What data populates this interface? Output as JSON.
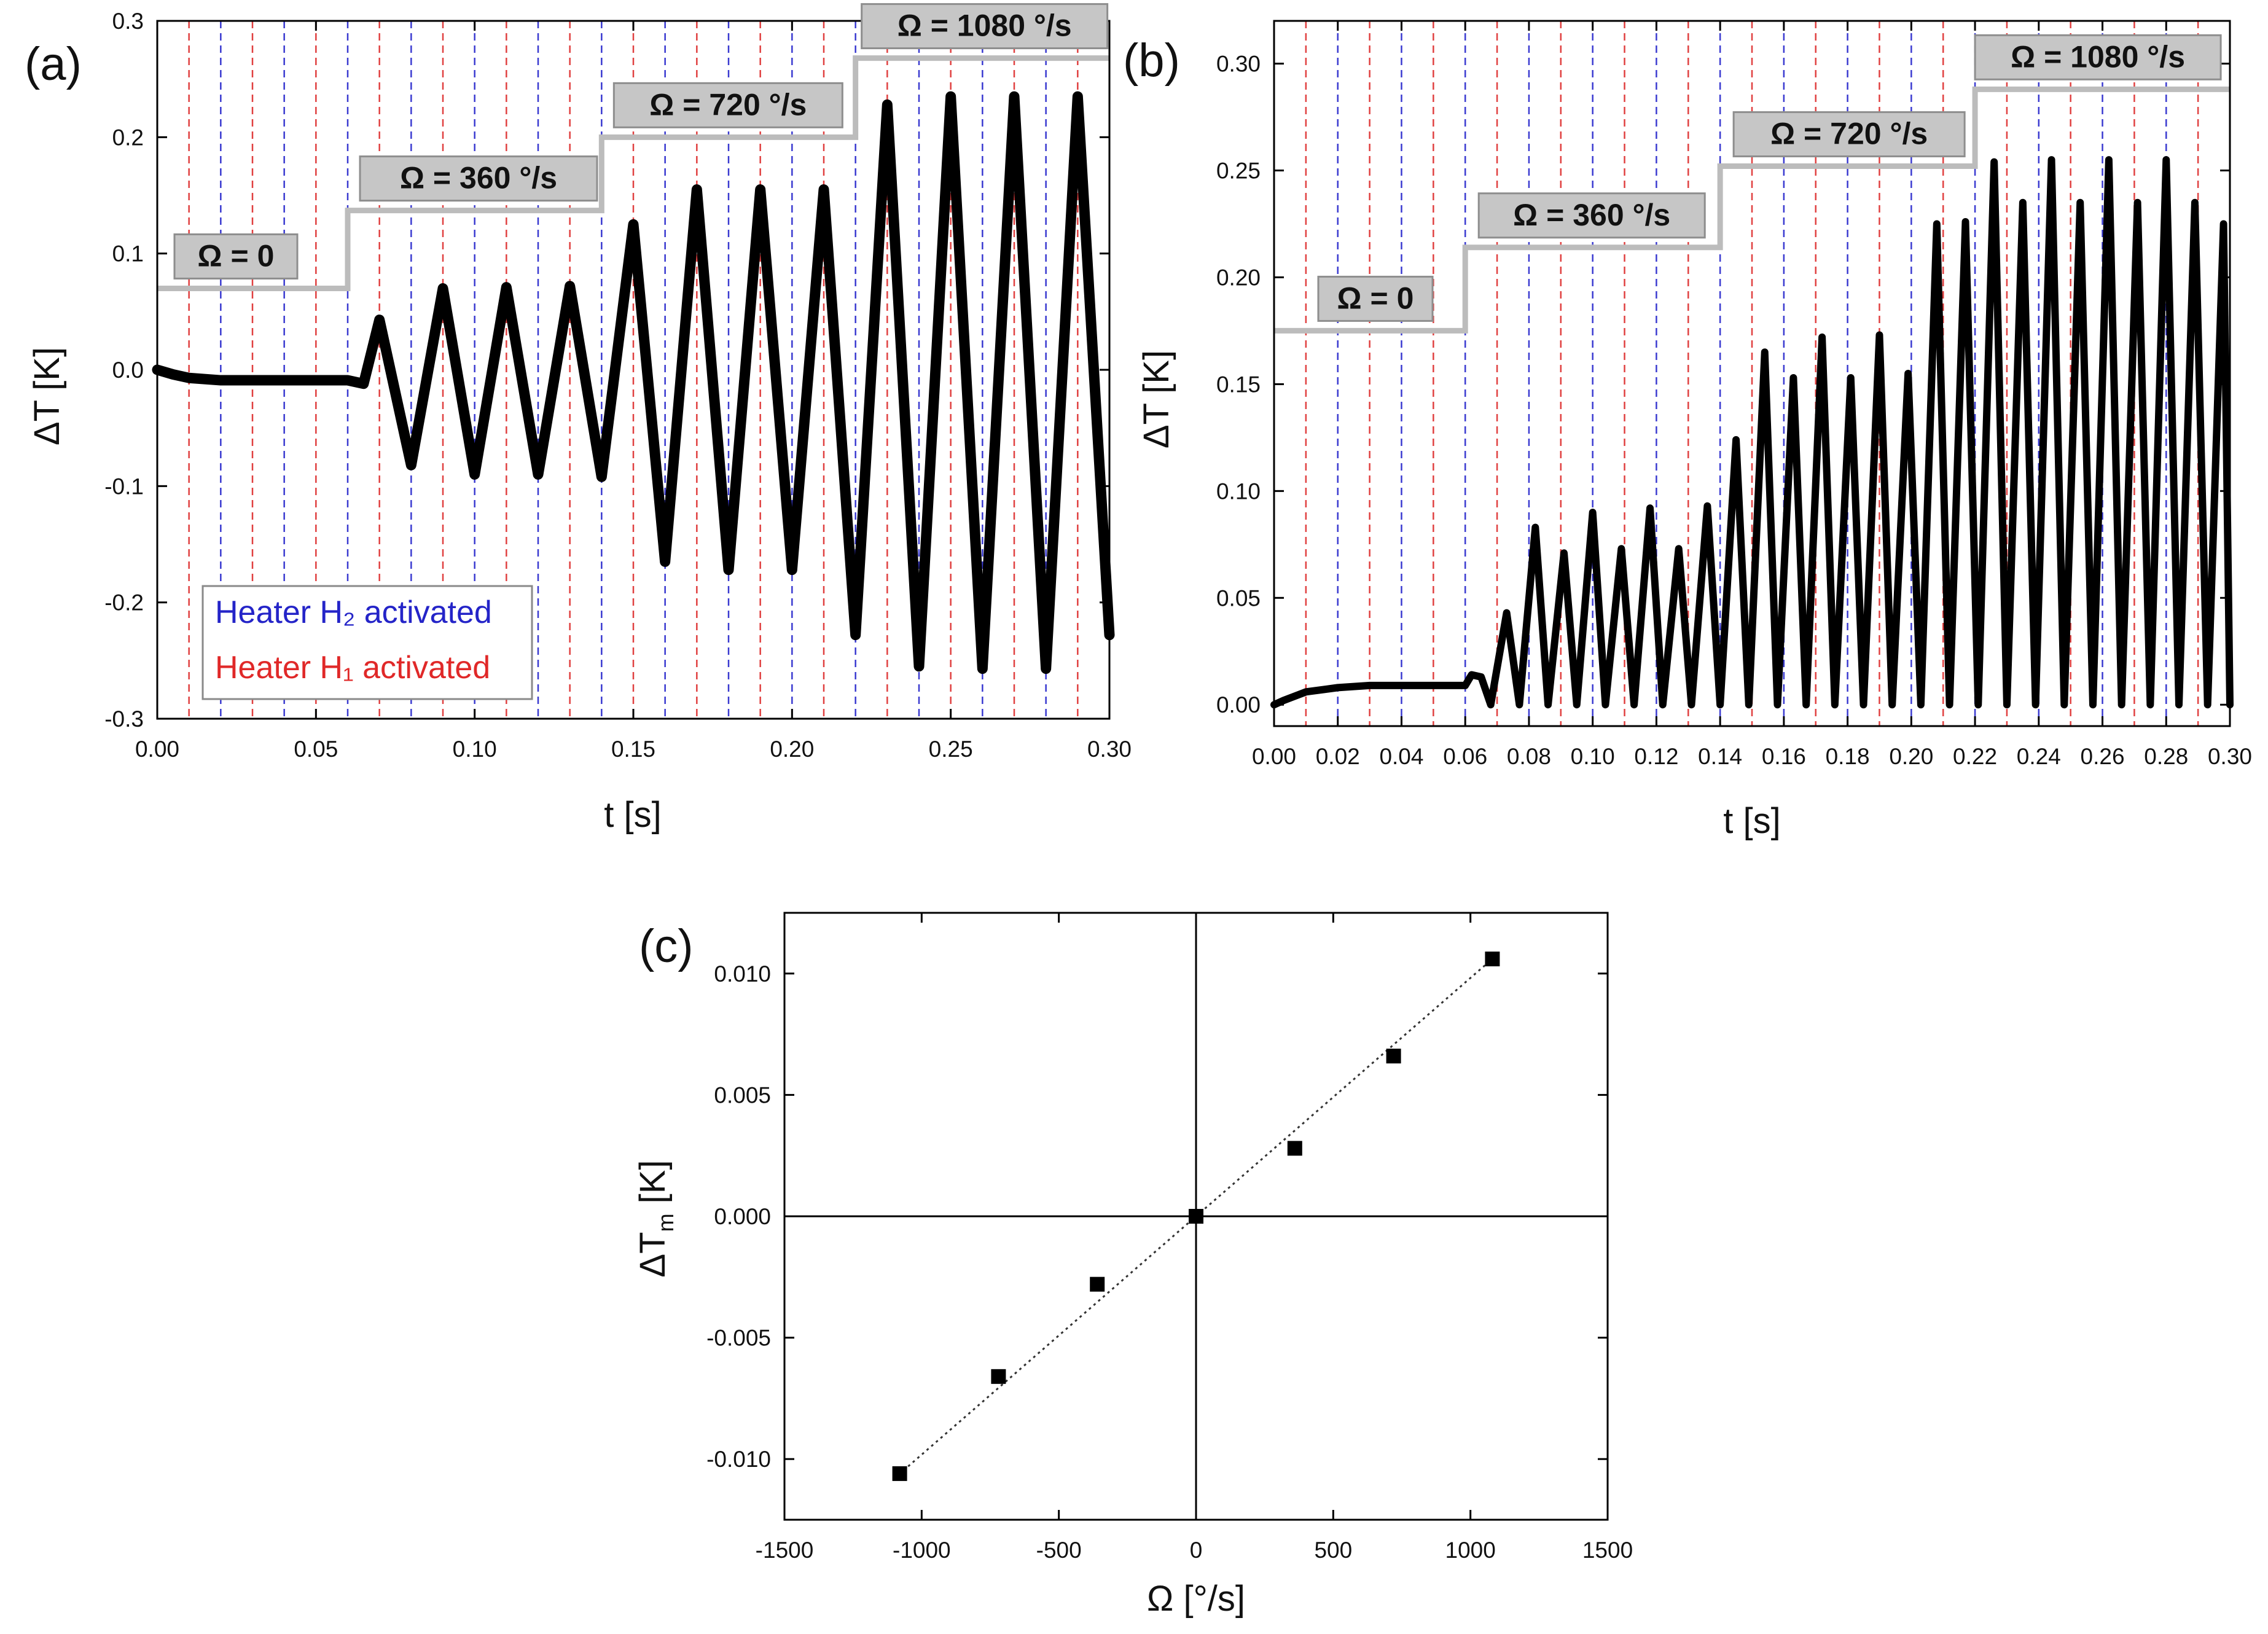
{
  "chart_data": [
    {
      "panel": "(a)",
      "type": "line",
      "xlabel": "t [s]",
      "ylabel": "ΔT [K]",
      "xlim": [
        0,
        0.3
      ],
      "ylim": [
        -0.3,
        0.3
      ],
      "xticks": [
        "0.00",
        "0.05",
        "0.10",
        "0.15",
        "0.20",
        "0.25",
        "0.30"
      ],
      "yticks": [
        "-0.3",
        "-0.2",
        "-0.1",
        "0.0",
        "0.1",
        "0.2",
        "0.3"
      ],
      "omega_boxes": [
        "Ω = 0",
        "Ω = 360 °/s",
        "Ω = 720 °/s",
        "Ω = 1080 °/s"
      ],
      "omega_phases": [
        {
          "t_start": 0.0,
          "t_end": 0.06,
          "step_level": 0.07
        },
        {
          "t_start": 0.06,
          "t_end": 0.14,
          "step_level": 0.137
        },
        {
          "t_start": 0.14,
          "t_end": 0.22,
          "step_level": 0.2
        },
        {
          "t_start": 0.22,
          "t_end": 0.3,
          "step_level": 0.268
        }
      ],
      "legend": {
        "h2": "Heater H₂ activated",
        "h1": "Heater H₁ activated",
        "h2_color": "#2424c8",
        "h1_color": "#e02828"
      },
      "heater_lines": {
        "red_t": [
          0.01,
          0.03,
          0.05,
          0.07,
          0.09,
          0.11,
          0.13,
          0.15,
          0.17,
          0.19,
          0.21,
          0.23,
          0.25,
          0.27,
          0.29
        ],
        "blue_t": [
          0.02,
          0.04,
          0.06,
          0.08,
          0.1,
          0.12,
          0.14,
          0.16,
          0.18,
          0.2,
          0.22,
          0.24,
          0.26,
          0.28,
          0.3
        ]
      },
      "series": [
        {
          "name": "ΔT",
          "points": [
            [
              0.0,
              0.0
            ],
            [
              0.005,
              -0.004
            ],
            [
              0.01,
              -0.007
            ],
            [
              0.02,
              -0.009
            ],
            [
              0.04,
              -0.009
            ],
            [
              0.06,
              -0.009
            ],
            [
              0.065,
              -0.012
            ],
            [
              0.07,
              0.043
            ],
            [
              0.08,
              -0.082
            ],
            [
              0.09,
              0.07
            ],
            [
              0.1,
              -0.09
            ],
            [
              0.11,
              0.071
            ],
            [
              0.12,
              -0.09
            ],
            [
              0.13,
              0.072
            ],
            [
              0.14,
              -0.092
            ],
            [
              0.15,
              0.125
            ],
            [
              0.16,
              -0.165
            ],
            [
              0.17,
              0.155
            ],
            [
              0.18,
              -0.172
            ],
            [
              0.19,
              0.155
            ],
            [
              0.2,
              -0.172
            ],
            [
              0.21,
              0.155
            ],
            [
              0.22,
              -0.228
            ],
            [
              0.23,
              0.228
            ],
            [
              0.24,
              -0.255
            ],
            [
              0.25,
              0.235
            ],
            [
              0.26,
              -0.257
            ],
            [
              0.27,
              0.235
            ],
            [
              0.28,
              -0.257
            ],
            [
              0.29,
              0.235
            ],
            [
              0.3,
              -0.228
            ]
          ]
        }
      ]
    },
    {
      "panel": "(b)",
      "type": "line",
      "xlabel": "t [s]",
      "ylabel": "ΔT [K]",
      "xlim": [
        0,
        0.3
      ],
      "ylim": [
        -0.01,
        0.32
      ],
      "xticks": [
        "0.00",
        "0.02",
        "0.04",
        "0.06",
        "0.08",
        "0.10",
        "0.12",
        "0.14",
        "0.16",
        "0.18",
        "0.20",
        "0.22",
        "0.24",
        "0.26",
        "0.28",
        "0.30"
      ],
      "yticks": [
        "0.00",
        "0.05",
        "0.10",
        "0.15",
        "0.20",
        "0.25",
        "0.30"
      ],
      "omega_boxes": [
        "Ω = 0",
        "Ω = 360 °/s",
        "Ω = 720 °/s",
        "Ω = 1080 °/s"
      ],
      "omega_phases": [
        {
          "t_start": 0.0,
          "t_end": 0.06,
          "step_level": 0.175
        },
        {
          "t_start": 0.06,
          "t_end": 0.14,
          "step_level": 0.214
        },
        {
          "t_start": 0.14,
          "t_end": 0.22,
          "step_level": 0.252
        },
        {
          "t_start": 0.22,
          "t_end": 0.3,
          "step_level": 0.288
        }
      ],
      "heater_lines": {
        "red_t": [
          0.01,
          0.03,
          0.05,
          0.07,
          0.09,
          0.11,
          0.13,
          0.15,
          0.17,
          0.19,
          0.21,
          0.23,
          0.25,
          0.27,
          0.29
        ],
        "blue_t": [
          0.02,
          0.04,
          0.06,
          0.08,
          0.1,
          0.12,
          0.14,
          0.16,
          0.18,
          0.2,
          0.22,
          0.24,
          0.26,
          0.28,
          0.3
        ]
      },
      "series": [
        {
          "name": "ΔT",
          "points": [
            [
              0.0,
              0.0
            ],
            [
              0.003,
              0.002
            ],
            [
              0.01,
              0.006
            ],
            [
              0.02,
              0.008
            ],
            [
              0.03,
              0.009
            ],
            [
              0.04,
              0.009
            ],
            [
              0.05,
              0.009
            ],
            [
              0.06,
              0.009
            ],
            [
              0.062,
              0.014
            ],
            [
              0.065,
              0.013
            ],
            [
              0.068,
              0.0
            ],
            [
              0.073,
              0.043
            ],
            [
              0.077,
              0.0
            ],
            [
              0.082,
              0.083
            ],
            [
              0.086,
              0.0
            ],
            [
              0.091,
              0.071
            ],
            [
              0.095,
              0.0
            ],
            [
              0.1,
              0.09
            ],
            [
              0.104,
              0.0
            ],
            [
              0.109,
              0.073
            ],
            [
              0.113,
              0.0
            ],
            [
              0.118,
              0.092
            ],
            [
              0.122,
              0.0
            ],
            [
              0.127,
              0.073
            ],
            [
              0.131,
              0.0
            ],
            [
              0.136,
              0.093
            ],
            [
              0.14,
              0.0
            ],
            [
              0.145,
              0.124
            ],
            [
              0.149,
              0.0
            ],
            [
              0.154,
              0.165
            ],
            [
              0.158,
              0.0
            ],
            [
              0.163,
              0.153
            ],
            [
              0.167,
              0.0
            ],
            [
              0.172,
              0.172
            ],
            [
              0.176,
              0.0
            ],
            [
              0.181,
              0.153
            ],
            [
              0.185,
              0.0
            ],
            [
              0.19,
              0.173
            ],
            [
              0.194,
              0.0
            ],
            [
              0.199,
              0.155
            ],
            [
              0.203,
              0.0
            ],
            [
              0.208,
              0.225
            ],
            [
              0.212,
              0.0
            ],
            [
              0.217,
              0.226
            ],
            [
              0.221,
              0.0
            ],
            [
              0.226,
              0.254
            ],
            [
              0.23,
              0.0
            ],
            [
              0.235,
              0.235
            ],
            [
              0.239,
              0.0
            ],
            [
              0.244,
              0.255
            ],
            [
              0.248,
              0.0
            ],
            [
              0.253,
              0.235
            ],
            [
              0.257,
              0.0
            ],
            [
              0.262,
              0.255
            ],
            [
              0.266,
              0.0
            ],
            [
              0.271,
              0.235
            ],
            [
              0.275,
              0.0
            ],
            [
              0.28,
              0.255
            ],
            [
              0.284,
              0.0
            ],
            [
              0.289,
              0.235
            ],
            [
              0.293,
              0.0
            ],
            [
              0.298,
              0.225
            ],
            [
              0.3,
              0.0
            ]
          ]
        }
      ]
    },
    {
      "panel": "(c)",
      "type": "scatter",
      "xlabel": "Ω [°/s]",
      "ylabel": "ΔTm [K]",
      "xlim": [
        -1500,
        1500
      ],
      "ylim": [
        -0.0125,
        0.0125
      ],
      "xticks": [
        "-1500",
        "-1000",
        "-500",
        "0",
        "500",
        "1000",
        "1500"
      ],
      "yticks": [
        "-0.010",
        "-0.005",
        "0.000",
        "0.005",
        "0.010"
      ],
      "series": [
        {
          "name": "ΔTm",
          "x": [
            -1080,
            -720,
            -360,
            0,
            360,
            720,
            1080
          ],
          "y": [
            -0.0106,
            -0.0066,
            -0.0028,
            0.0,
            0.0028,
            0.0066,
            0.0106
          ]
        }
      ],
      "fit": {
        "x": [
          -1100,
          1100
        ],
        "y": [
          -0.0108,
          0.0108
        ]
      }
    }
  ]
}
